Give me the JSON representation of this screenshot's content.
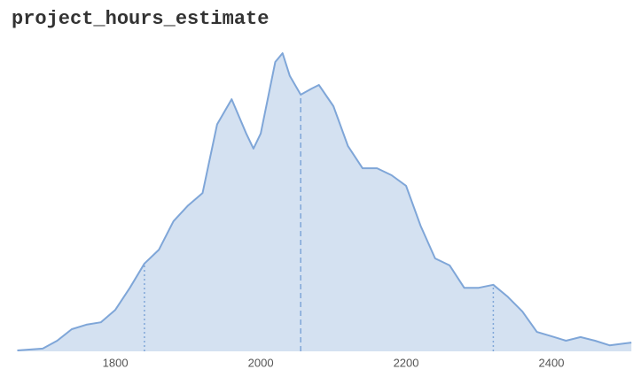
{
  "chart_data": {
    "type": "density",
    "title": "project_hours_estimate",
    "x": [
      1665,
      1700,
      1720,
      1740,
      1760,
      1780,
      1800,
      1820,
      1840,
      1860,
      1880,
      1900,
      1920,
      1940,
      1960,
      1980,
      1990,
      2000,
      2020,
      2030,
      2040,
      2055,
      2070,
      2080,
      2100,
      2120,
      2140,
      2160,
      2180,
      2200,
      2220,
      2240,
      2260,
      2280,
      2300,
      2320,
      2340,
      2360,
      2380,
      2400,
      2420,
      2440,
      2460,
      2480,
      2500,
      2510
    ],
    "values": [
      0.3,
      0.9,
      3.5,
      7.3,
      8.8,
      9.6,
      13.7,
      21,
      29,
      33.6,
      43,
      48.2,
      52.3,
      75,
      83.3,
      72,
      67,
      72,
      95.6,
      98.5,
      91,
      84.8,
      86.8,
      88,
      81,
      67.8,
      60.5,
      60.5,
      58.2,
      54.7,
      41.5,
      30.7,
      28.4,
      21,
      21,
      22,
      18,
      13.2,
      6.4,
      5,
      3.5,
      4.7,
      3.5,
      2,
      2.6,
      2.9
    ],
    "quantile_lines": [
      1840,
      2055,
      2320
    ],
    "color": "#7fa6d8",
    "fill": "#d4e1f1",
    "xlim": [
      1662,
      2511
    ],
    "ylim": [
      0,
      100
    ],
    "xticks": [
      1800,
      2000,
      2200,
      2400
    ]
  }
}
